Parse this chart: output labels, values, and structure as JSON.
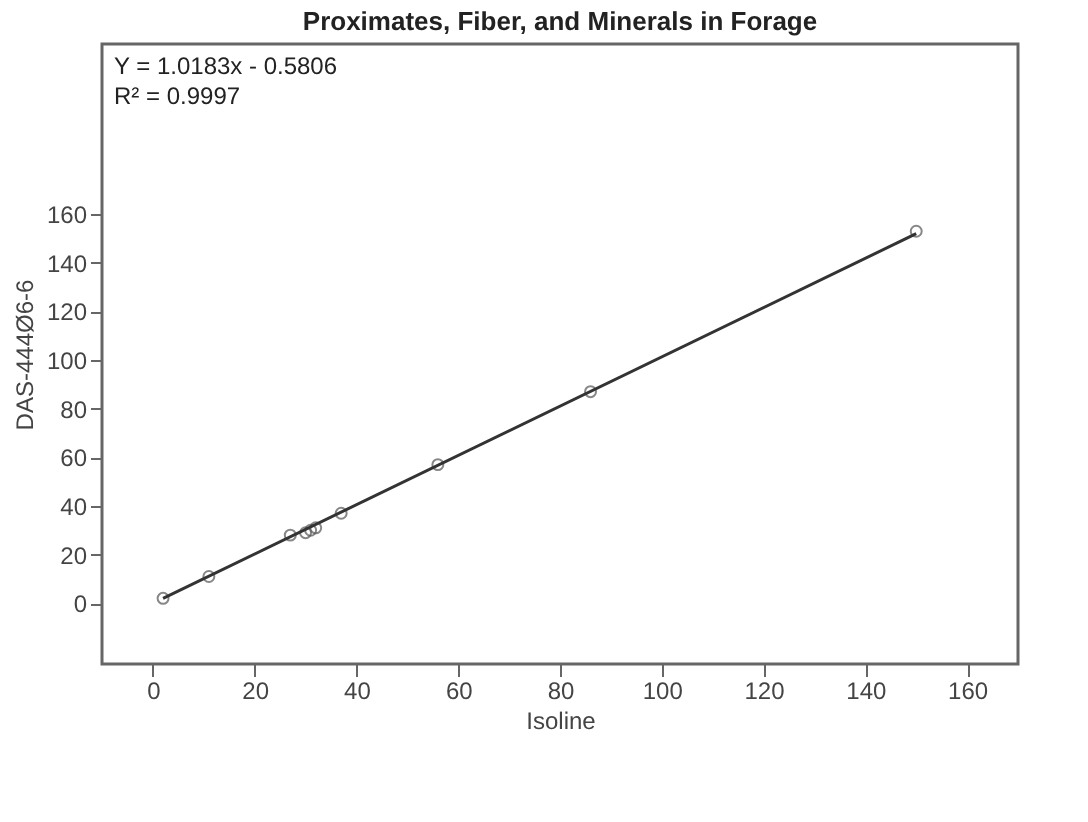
{
  "chart_data": {
    "type": "scatter",
    "title": "Proximates, Fiber, and Minerals in Forage",
    "xlabel": "Isoline",
    "ylabel": "DAS-444Ø6-6",
    "annotations": [
      "Y = 1.0183x - 0.5806",
      "R² = 0.9997"
    ],
    "series": [
      {
        "color": "#555555",
        "marker": "circle",
        "x": [
          2,
          11,
          27,
          30,
          31,
          32,
          37,
          56,
          86,
          150
        ],
        "values": [
          2,
          11,
          28,
          29,
          30,
          31,
          37,
          57,
          87,
          153
        ]
      },
      {
        "type": "line",
        "color": "#333333",
        "marker": "none",
        "x": [
          2,
          150
        ],
        "values": [
          2,
          152
        ]
      }
    ],
    "xlim": [
      -10,
      170
    ],
    "ylim": [
      -25,
      230
    ],
    "xticks": [
      0,
      20,
      40,
      60,
      80,
      100,
      120,
      140,
      160
    ],
    "yticks": [
      0,
      20,
      40,
      60,
      80,
      100,
      120,
      140,
      160
    ],
    "grid": false
  }
}
